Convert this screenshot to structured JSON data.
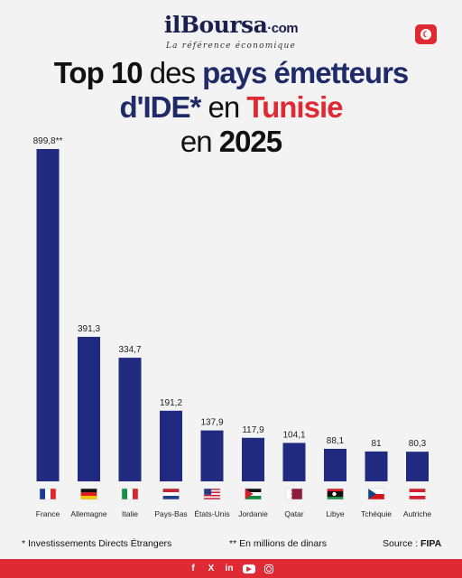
{
  "brand": {
    "name": "ilBoursa",
    "suffix": "com",
    "tagline": "La référence économique"
  },
  "headline": {
    "line1_bold": "Top 10",
    "line1_plain": " des ",
    "line1_accent": "pays émetteurs",
    "line2_accent": "d'IDE*",
    "line2_plain": " en ",
    "line2_red": "Tunisie",
    "line3_plain": "en ",
    "line3_bold": "2025"
  },
  "colors": {
    "bar": "#1f2a80",
    "brand_red": "#e02a33",
    "navy": "#1f2a68",
    "background": "#f3f3f3"
  },
  "chart_data": {
    "type": "bar",
    "title": "Top 10 des pays émetteurs d'IDE* en Tunisie en 2025",
    "categories": [
      "France",
      "Allemagne",
      "Italie",
      "Pays-Bas",
      "États-Unis",
      "Jordanie",
      "Qatar",
      "Libye",
      "Tchéquie",
      "Autriche"
    ],
    "values": [
      899.8,
      391.3,
      334.7,
      191.2,
      137.9,
      117.9,
      104.1,
      88.1,
      81,
      80.3
    ],
    "value_labels": [
      "899,8**",
      "391,3",
      "334,7",
      "191,2",
      "137,9",
      "117,9",
      "104,1",
      "88,1",
      "81",
      "80,3"
    ],
    "flags": [
      "flag-france",
      "flag-germany",
      "flag-italy",
      "flag-netherlands",
      "flag-usa",
      "flag-jordan",
      "flag-qatar",
      "flag-libya",
      "flag-czechia",
      "flag-austria"
    ],
    "ylim": [
      0,
      899.8
    ],
    "grid": false,
    "xlabel": "",
    "ylabel": ""
  },
  "footnotes": {
    "ide": "*  Investissements Directs Étrangers",
    "unit": "**   En millions de dinars",
    "source_label": "Source : ",
    "source_value": "FIPA"
  },
  "social": {
    "facebook": "f",
    "x": "X",
    "linkedin": "in",
    "youtube": "▶"
  }
}
